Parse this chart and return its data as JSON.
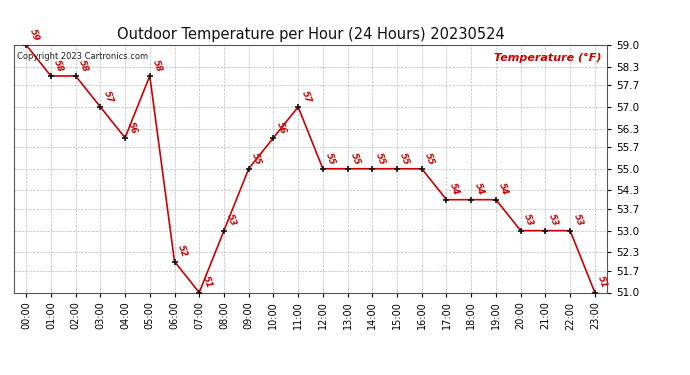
{
  "title": "Outdoor Temperature per Hour (24 Hours) 20230524",
  "copyright_text": "Copyright 2023 Cartronics.com",
  "legend_label": "Temperature (°F)",
  "hours": [
    0,
    1,
    2,
    3,
    4,
    5,
    6,
    7,
    8,
    9,
    10,
    11,
    12,
    13,
    14,
    15,
    16,
    17,
    18,
    19,
    20,
    21,
    22,
    23
  ],
  "hour_labels": [
    "00:00",
    "01:00",
    "02:00",
    "03:00",
    "04:00",
    "05:00",
    "06:00",
    "07:00",
    "08:00",
    "09:00",
    "10:00",
    "11:00",
    "12:00",
    "13:00",
    "14:00",
    "15:00",
    "16:00",
    "17:00",
    "18:00",
    "19:00",
    "20:00",
    "21:00",
    "22:00",
    "23:00"
  ],
  "temps": [
    59,
    58,
    58,
    57,
    56,
    58,
    52,
    51,
    53,
    55,
    56,
    57,
    55,
    55,
    55,
    55,
    55,
    54,
    54,
    54,
    53,
    53,
    53,
    51
  ],
  "ylim_min": 51.0,
  "ylim_max": 59.0,
  "yticks": [
    51.0,
    51.7,
    52.3,
    53.0,
    53.7,
    54.3,
    55.0,
    55.7,
    56.3,
    57.0,
    57.7,
    58.3,
    59.0
  ],
  "line_color": "#cc0000",
  "marker_color": "#111111",
  "label_color": "#cc0000",
  "title_color": "#111111",
  "bg_color": "#ffffff",
  "plot_bg_color": "#ffffff",
  "grid_color": "#bbbbbb",
  "copyright_color": "#222222",
  "legend_color": "#cc0000"
}
